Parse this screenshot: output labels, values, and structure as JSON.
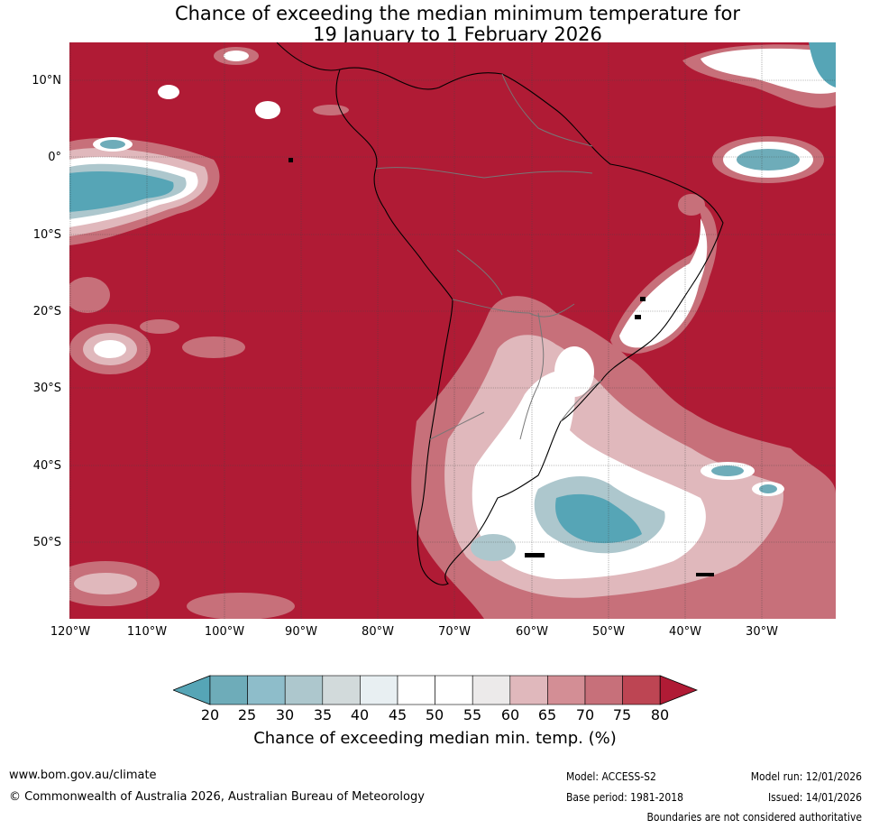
{
  "title": {
    "line1": "Chance of exceeding the median minimum temperature for",
    "line2": "19 January to 1 February 2026"
  },
  "map": {
    "lat_labels": [
      "10°N",
      "0°",
      "10°S",
      "20°S",
      "30°S",
      "40°S",
      "50°S"
    ],
    "lon_labels": [
      "120°W",
      "110°W",
      "100°W",
      "90°W",
      "80°W",
      "70°W",
      "60°W",
      "50°W",
      "40°W",
      "30°W"
    ],
    "colors": {
      "ocean_high": "#b01b35",
      "c20_25": "#56a5b6",
      "c25_30": "#6eacb9",
      "c30_35": "#8ebdca",
      "c35_40": "#adc7cd",
      "c40_45": "#d2dadb",
      "c45_50": "#e8eff2",
      "c50_55": "#ffffff",
      "c55_60": "#ffffff",
      "c60_65": "#eceaea",
      "c65_70": "#e0b8bc",
      "c70_75": "#d38e95",
      "c75_80": "#c7707a",
      "c80_plus": "#bd4553"
    }
  },
  "colorbar": {
    "ticks": [
      "20",
      "25",
      "30",
      "35",
      "40",
      "45",
      "50",
      "55",
      "60",
      "65",
      "70",
      "75",
      "80"
    ],
    "label": "Chance of exceeding median min. temp. (%)"
  },
  "footer": {
    "website": "www.bom.gov.au/climate",
    "copyright": "© Commonwealth of Australia 2026, Australian Bureau of Meteorology",
    "model": "Model: ACCESS-S2",
    "base_period": "Base period: 1981-2018",
    "model_run": "Model run: 12/01/2026",
    "issued": "Issued: 14/01/2026",
    "disclaimer": "Boundaries are not considered authoritative"
  }
}
